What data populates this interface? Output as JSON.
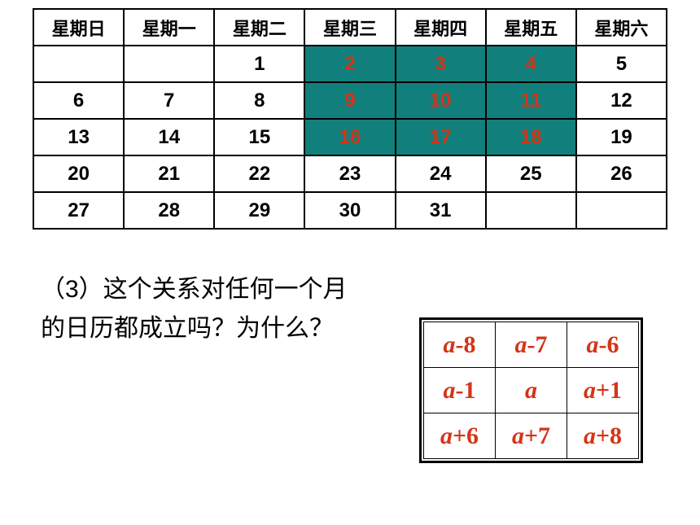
{
  "calendar": {
    "headers": [
      "星期日",
      "星期一",
      "星期二",
      "星期三",
      "星期四",
      "星期五",
      "星期六"
    ],
    "rows": [
      [
        {
          "v": ""
        },
        {
          "v": ""
        },
        {
          "v": "1"
        },
        {
          "v": "2",
          "hl": true
        },
        {
          "v": "3",
          "hl": true
        },
        {
          "v": "4",
          "hl": true
        },
        {
          "v": "5"
        }
      ],
      [
        {
          "v": "6"
        },
        {
          "v": "7"
        },
        {
          "v": "8"
        },
        {
          "v": "9",
          "hl": true
        },
        {
          "v": "10",
          "hl": true
        },
        {
          "v": "11",
          "hl": true
        },
        {
          "v": "12"
        }
      ],
      [
        {
          "v": "13"
        },
        {
          "v": "14"
        },
        {
          "v": "15"
        },
        {
          "v": "16",
          "hl": true
        },
        {
          "v": "17",
          "hl": true
        },
        {
          "v": "18",
          "hl": true
        },
        {
          "v": "19"
        }
      ],
      [
        {
          "v": "20"
        },
        {
          "v": "21"
        },
        {
          "v": "22"
        },
        {
          "v": "23"
        },
        {
          "v": "24"
        },
        {
          "v": "25"
        },
        {
          "v": "26"
        }
      ],
      [
        {
          "v": "27"
        },
        {
          "v": "28"
        },
        {
          "v": "29"
        },
        {
          "v": "30"
        },
        {
          "v": "31"
        },
        {
          "v": ""
        },
        {
          "v": ""
        }
      ]
    ],
    "highlight_bg": "#117f7b",
    "highlight_color": "#d43417",
    "border_color": "#000000",
    "font_size": 24
  },
  "question": {
    "text": "（3）这个关系对任何一个月的日历都成立吗？为什么？",
    "font_size": 30
  },
  "formula": {
    "cells": [
      [
        "a-8",
        "a-7",
        "a-6"
      ],
      [
        "a-1",
        "a",
        "a+1"
      ],
      [
        "a+6",
        "a+7",
        "a+8"
      ]
    ],
    "text_color": "#d43417",
    "border_color": "#000000",
    "font_size": 30
  }
}
